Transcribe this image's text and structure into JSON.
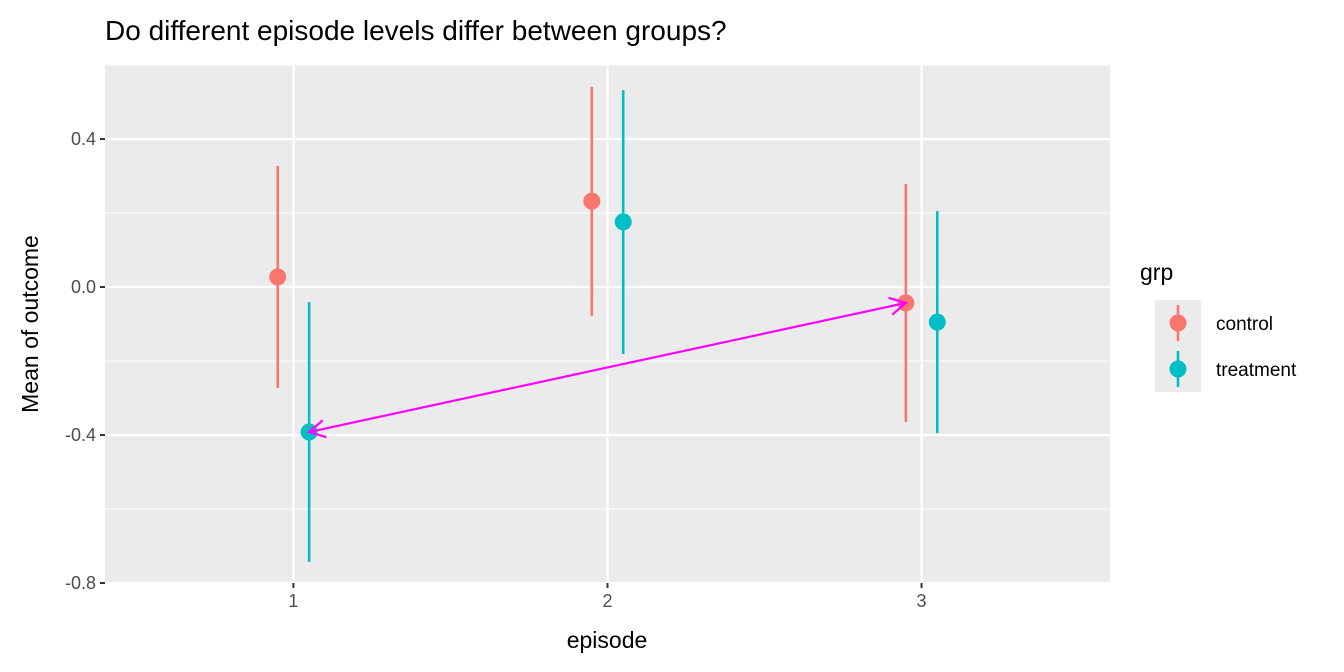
{
  "chart_data": {
    "type": "scatter",
    "subtype": "point-errorbar (dodged)",
    "title": "Do different episode levels differ between groups?",
    "xlabel": "episode",
    "ylabel": "Mean of outcome",
    "categories": [
      "1",
      "2",
      "3"
    ],
    "xlim": [
      0.4,
      3.6
    ],
    "ylim": [
      -0.8,
      0.6
    ],
    "yticks": [
      -0.8,
      -0.4,
      0.0,
      0.4
    ],
    "ytick_labels": [
      "-0.8",
      "-0.4",
      "0.0",
      "0.4"
    ],
    "grid": true,
    "legend": {
      "title": "grp",
      "placement": "right"
    },
    "series": [
      {
        "name": "control",
        "color": "#F8766D",
        "dodge": -0.05,
        "values": [
          0.027,
          0.232,
          -0.043
        ],
        "lower": [
          -0.273,
          -0.078,
          -0.365
        ],
        "upper": [
          0.327,
          0.541,
          0.278
        ]
      },
      {
        "name": "treatment",
        "color": "#00BFC4",
        "dodge": 0.05,
        "values": [
          -0.392,
          0.176,
          -0.095
        ],
        "lower": [
          -0.743,
          -0.181,
          -0.395
        ],
        "upper": [
          -0.041,
          0.532,
          0.205
        ]
      }
    ],
    "annotations": [
      {
        "type": "double-arrow",
        "color": "#FF00FF",
        "from": {
          "episode": 1.05,
          "value": -0.392
        },
        "to": {
          "episode": 2.95,
          "value": -0.043
        }
      }
    ]
  }
}
